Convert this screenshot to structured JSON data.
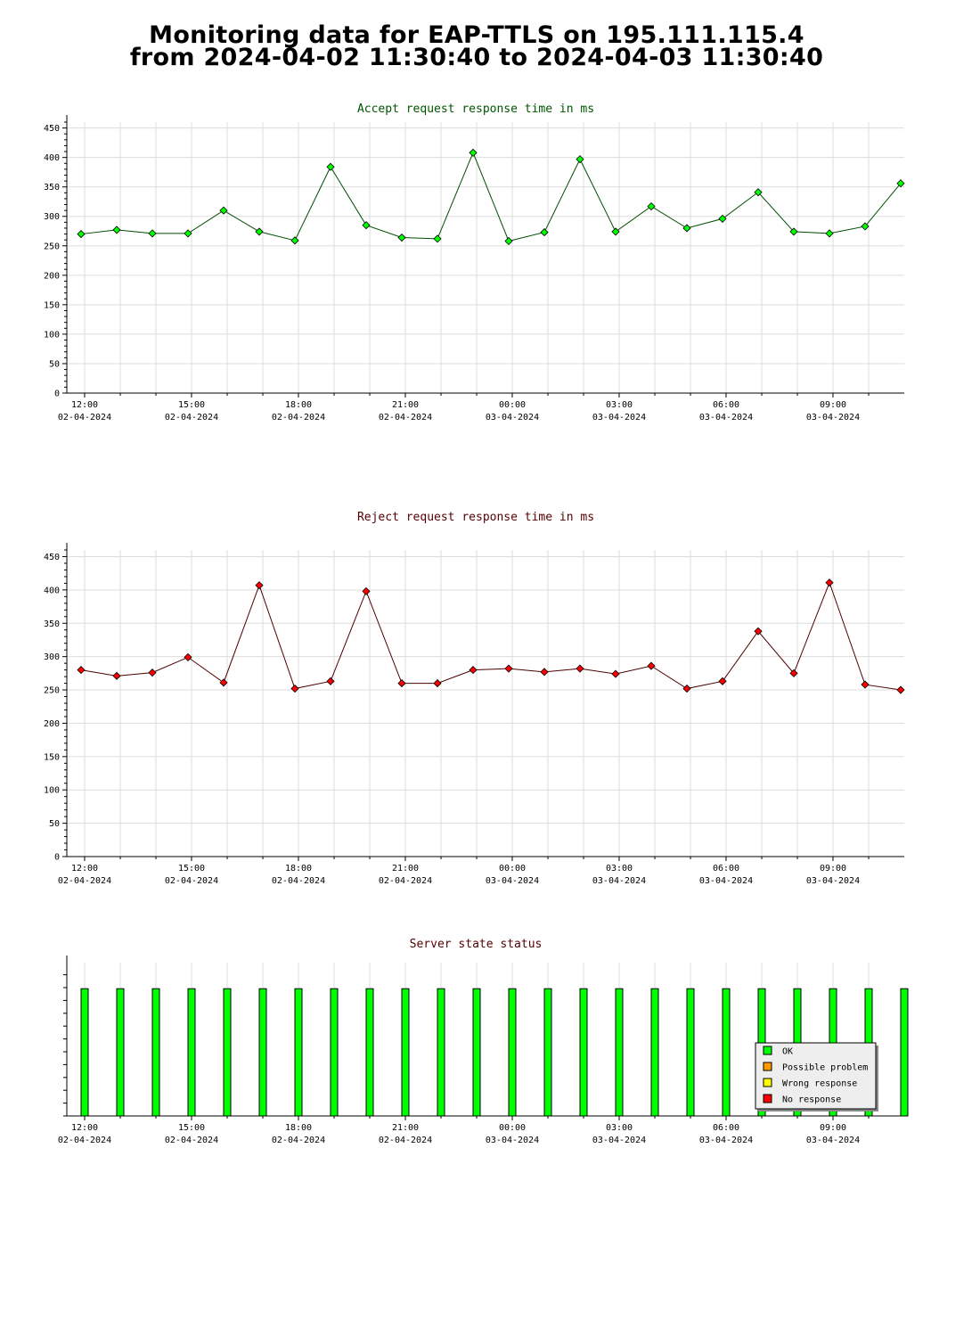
{
  "header": {
    "title_line1": "Monitoring data for EAP-TTLS on 195.111.115.4",
    "title_line2": "from 2024-04-02 11:30:40 to 2024-04-03 11:30:40"
  },
  "colors": {
    "accept_marker": "#00ff00",
    "accept_line": "#004d00",
    "accept_title": "#005500",
    "reject_marker": "#ff0000",
    "reject_line": "#4d0000",
    "reject_title": "#550000",
    "status_title": "#550000",
    "ok": "#00ff00",
    "possible_problem": "#ff9900",
    "wrong_response": "#ffff00",
    "no_response": "#ff0000",
    "grid": "#dddddd"
  },
  "x_ticks": [
    {
      "time": "12:00",
      "date": "02-04-2024"
    },
    {
      "time": "15:00",
      "date": "02-04-2024"
    },
    {
      "time": "18:00",
      "date": "02-04-2024"
    },
    {
      "time": "21:00",
      "date": "02-04-2024"
    },
    {
      "time": "00:00",
      "date": "03-04-2024"
    },
    {
      "time": "03:00",
      "date": "03-04-2024"
    },
    {
      "time": "06:00",
      "date": "03-04-2024"
    },
    {
      "time": "09:00",
      "date": "03-04-2024"
    }
  ],
  "chart_data": [
    {
      "type": "line",
      "title": "Accept request response time in ms",
      "x_hours": [
        11.9,
        12.9,
        13.9,
        14.9,
        15.9,
        16.9,
        17.9,
        18.9,
        19.9,
        20.9,
        21.9,
        22.9,
        23.9,
        24.9,
        25.9,
        26.9,
        27.9,
        28.9,
        29.9,
        30.9,
        31.9,
        32.9,
        33.9,
        34.9
      ],
      "values": [
        270,
        277,
        271,
        271,
        310,
        274,
        259,
        384,
        285,
        264,
        262,
        408,
        258,
        273,
        397,
        274,
        317,
        280,
        296,
        341,
        274,
        271,
        283,
        356
      ],
      "ylim": [
        0,
        460
      ],
      "yticks": [
        0,
        50,
        100,
        150,
        200,
        250,
        300,
        350,
        400,
        450
      ],
      "grid": true
    },
    {
      "type": "line",
      "title": "Reject request response time in ms",
      "x_hours": [
        11.9,
        12.9,
        13.9,
        14.9,
        15.9,
        16.9,
        17.9,
        18.9,
        19.9,
        20.9,
        21.9,
        22.9,
        23.9,
        24.9,
        25.9,
        26.9,
        27.9,
        28.9,
        29.9,
        30.9,
        31.9,
        32.9,
        33.9,
        34.9
      ],
      "values": [
        280,
        271,
        276,
        299,
        261,
        407,
        252,
        263,
        398,
        260,
        260,
        280,
        282,
        277,
        282,
        274,
        286,
        252,
        263,
        338,
        275,
        411,
        258,
        250
      ],
      "ylim": [
        0,
        460
      ],
      "yticks": [
        0,
        50,
        100,
        150,
        200,
        250,
        300,
        350,
        400,
        450
      ],
      "grid": true
    },
    {
      "type": "bar",
      "title": "Server state status",
      "x_hours": [
        12.0,
        13.0,
        14.0,
        15.0,
        16.0,
        17.0,
        18.0,
        19.0,
        20.0,
        21.0,
        22.0,
        23.0,
        24.0,
        25.0,
        26.0,
        27.0,
        28.0,
        29.0,
        30.0,
        31.0,
        32.0,
        33.0,
        34.0,
        35.0
      ],
      "status": [
        "OK",
        "OK",
        "OK",
        "OK",
        "OK",
        "OK",
        "OK",
        "OK",
        "OK",
        "OK",
        "OK",
        "OK",
        "OK",
        "OK",
        "OK",
        "OK",
        "OK",
        "OK",
        "OK",
        "OK",
        "OK",
        "OK",
        "OK",
        "OK"
      ],
      "level": 0.83,
      "legend": [
        {
          "label": "OK",
          "color": "#00ff00"
        },
        {
          "label": "Possible problem",
          "color": "#ff9900"
        },
        {
          "label": "Wrong response",
          "color": "#ffff00"
        },
        {
          "label": "No response",
          "color": "#ff0000"
        }
      ],
      "legend_position": "bottom-right"
    }
  ]
}
